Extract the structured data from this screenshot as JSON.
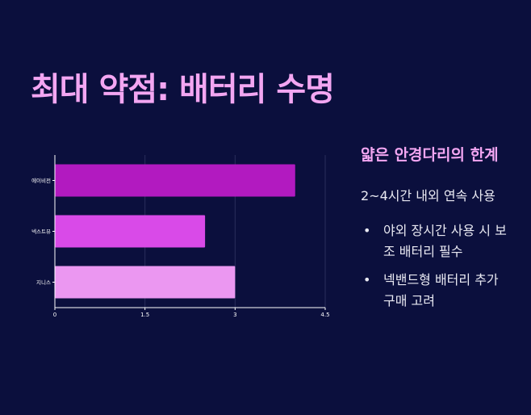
{
  "slide": {
    "title": "최대 약점: 배터리 수명",
    "side_heading": "얇은 안경다리의 한계",
    "side_sub": "2~4시간 내외 연속 사용",
    "bullets": [
      "야외 장시간 사용 시 보조 배터리 필수",
      "넥밴드형 배터리 추가 구매 고려"
    ]
  },
  "chart_data": {
    "type": "bar",
    "orientation": "horizontal",
    "categories": [
      "에이비전",
      "넥스트뷰",
      "지니스"
    ],
    "values": [
      4,
      2.5,
      3
    ],
    "colors": [
      "#b21ac0",
      "#d94ae8",
      "#eb97f1"
    ],
    "xlim": [
      0,
      4.5
    ],
    "xticks": [
      "0",
      "1.5",
      "3",
      "4.5"
    ],
    "grid": true
  }
}
